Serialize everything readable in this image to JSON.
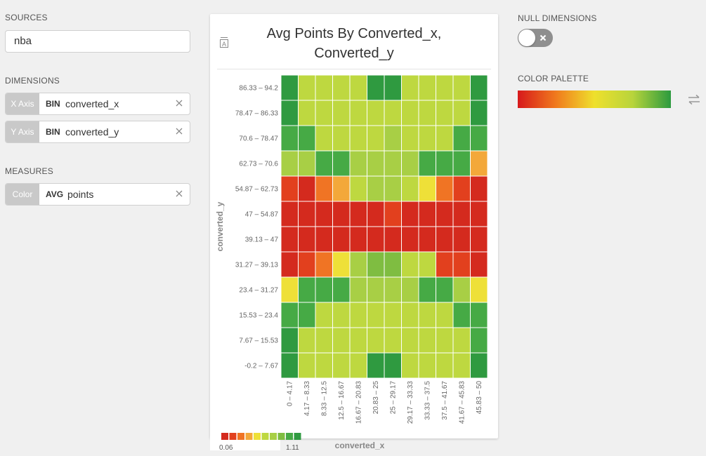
{
  "sources": {
    "label": "SOURCES",
    "value": "nba"
  },
  "dimensions": {
    "label": "DIMENSIONS",
    "x": {
      "tag": "X Axis",
      "agg": "BIN",
      "field": "converted_x"
    },
    "y": {
      "tag": "Y Axis",
      "agg": "BIN",
      "field": "converted_y"
    }
  },
  "measures": {
    "label": "MEASURES",
    "color": {
      "tag": "Color",
      "agg": "AVG",
      "field": "points"
    }
  },
  "null_dimensions": {
    "label": "NULL DIMENSIONS",
    "enabled": false
  },
  "color_palette": {
    "label": "COLOR PALETTE",
    "colors": [
      "#d7191c",
      "#f07a1d",
      "#efe02c",
      "#b8d43c",
      "#2b9a3e"
    ]
  },
  "chart_data": {
    "type": "heatmap",
    "title": "Avg Points By Converted_x,",
    "subtitle": "Converted_y",
    "title_icon": "A",
    "xlabel": "converted_x",
    "ylabel": "converted_y",
    "x_categories": [
      "0 – 4.17",
      "4.17 – 8.33",
      "8.33 – 12.5",
      "12.5 – 16.67",
      "16.67 – 20.83",
      "20.83 – 25",
      "25 – 29.17",
      "29.17 – 33.33",
      "33.33 – 37.5",
      "37.5 – 41.67",
      "41.67 – 45.83",
      "45.83 – 50"
    ],
    "y_categories": [
      "86.33 – 94.2",
      "78.47 – 86.33",
      "70.6 – 78.47",
      "62.73 – 70.6",
      "54.87 – 62.73",
      "47 – 54.87",
      "39.13 – 47",
      "31.27 – 39.13",
      "23.4 – 31.27",
      "15.53 – 23.4",
      "7.67 – 15.53",
      "-0.2 – 7.67"
    ],
    "color_levels": [
      8,
      8,
      8,
      8,
      7,
      7,
      7,
      7,
      6,
      6,
      5
    ],
    "legend": {
      "min": "0.06",
      "max": "1.11",
      "swatches": [
        "#d42a1e",
        "#e2401e",
        "#f07424",
        "#f3a83a",
        "#eee038",
        "#bed840",
        "#a8cf45",
        "#7fbd41",
        "#46aa45",
        "#2f9a40"
      ]
    },
    "levels": [
      [
        9,
        5,
        5,
        5,
        5,
        9,
        9,
        5,
        5,
        5,
        5,
        9
      ],
      [
        9,
        5,
        5,
        5,
        5,
        5,
        5,
        5,
        5,
        5,
        5,
        9
      ],
      [
        8,
        8,
        5,
        5,
        5,
        5,
        6,
        5,
        5,
        5,
        8,
        8
      ],
      [
        6,
        6,
        8,
        8,
        6,
        6,
        6,
        6,
        8,
        8,
        8,
        3
      ],
      [
        1,
        0,
        2,
        3,
        5,
        6,
        6,
        5,
        4,
        2,
        1,
        0
      ],
      [
        0,
        0,
        0,
        0,
        0,
        0,
        1,
        0,
        0,
        0,
        0,
        0
      ],
      [
        0,
        0,
        0,
        0,
        0,
        0,
        0,
        0,
        0,
        0,
        0,
        0
      ],
      [
        0,
        1,
        2,
        4,
        6,
        7,
        7,
        5,
        5,
        1,
        1,
        0
      ],
      [
        4,
        8,
        8,
        8,
        6,
        6,
        6,
        6,
        8,
        8,
        6,
        4
      ],
      [
        8,
        8,
        5,
        5,
        5,
        5,
        5,
        5,
        5,
        5,
        8,
        8
      ],
      [
        9,
        5,
        5,
        5,
        5,
        5,
        5,
        5,
        5,
        5,
        5,
        8
      ],
      [
        9,
        5,
        5,
        5,
        5,
        9,
        9,
        5,
        5,
        5,
        5,
        9
      ]
    ]
  }
}
